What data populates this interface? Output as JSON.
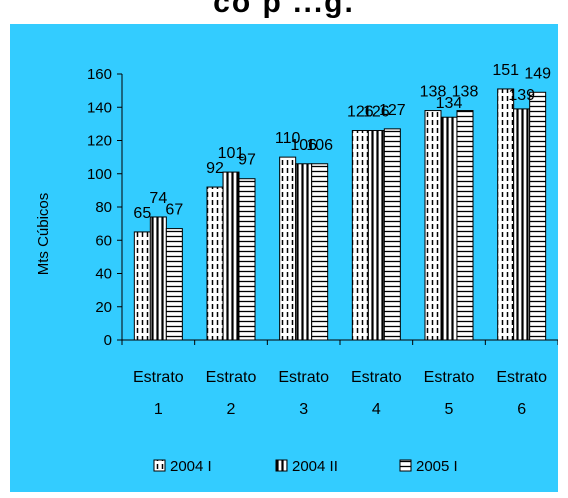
{
  "page": {
    "title_fragment": "co p ...g."
  },
  "colors": {
    "background": "#33ccff",
    "bar_fill": "#ffffff",
    "pattern": "#000000"
  },
  "chart_data": {
    "type": "bar",
    "title": "",
    "ylabel": "Mts Cúbicos",
    "xlabel": "",
    "ylim": [
      0,
      160
    ],
    "yticks": [
      0,
      20,
      40,
      60,
      80,
      100,
      120,
      140,
      160
    ],
    "categories": [
      {
        "line1": "Estrato",
        "line2": "1"
      },
      {
        "line1": "Estrato",
        "line2": "2"
      },
      {
        "line1": "Estrato",
        "line2": "3"
      },
      {
        "line1": "Estrato",
        "line2": "4"
      },
      {
        "line1": "Estrato",
        "line2": "5"
      },
      {
        "line1": "Estrato",
        "line2": "6"
      }
    ],
    "series": [
      {
        "name": "2004 I",
        "pattern": "dashed-vertical",
        "values": [
          65,
          92,
          110,
          126,
          138,
          151
        ]
      },
      {
        "name": "2004 II",
        "pattern": "solid-vertical",
        "values": [
          74,
          101,
          106,
          126,
          134,
          139
        ]
      },
      {
        "name": "2005 I",
        "pattern": "horizontal",
        "values": [
          67,
          97,
          106,
          127,
          138,
          149
        ]
      }
    ],
    "legend_position": "bottom",
    "grid": false
  }
}
